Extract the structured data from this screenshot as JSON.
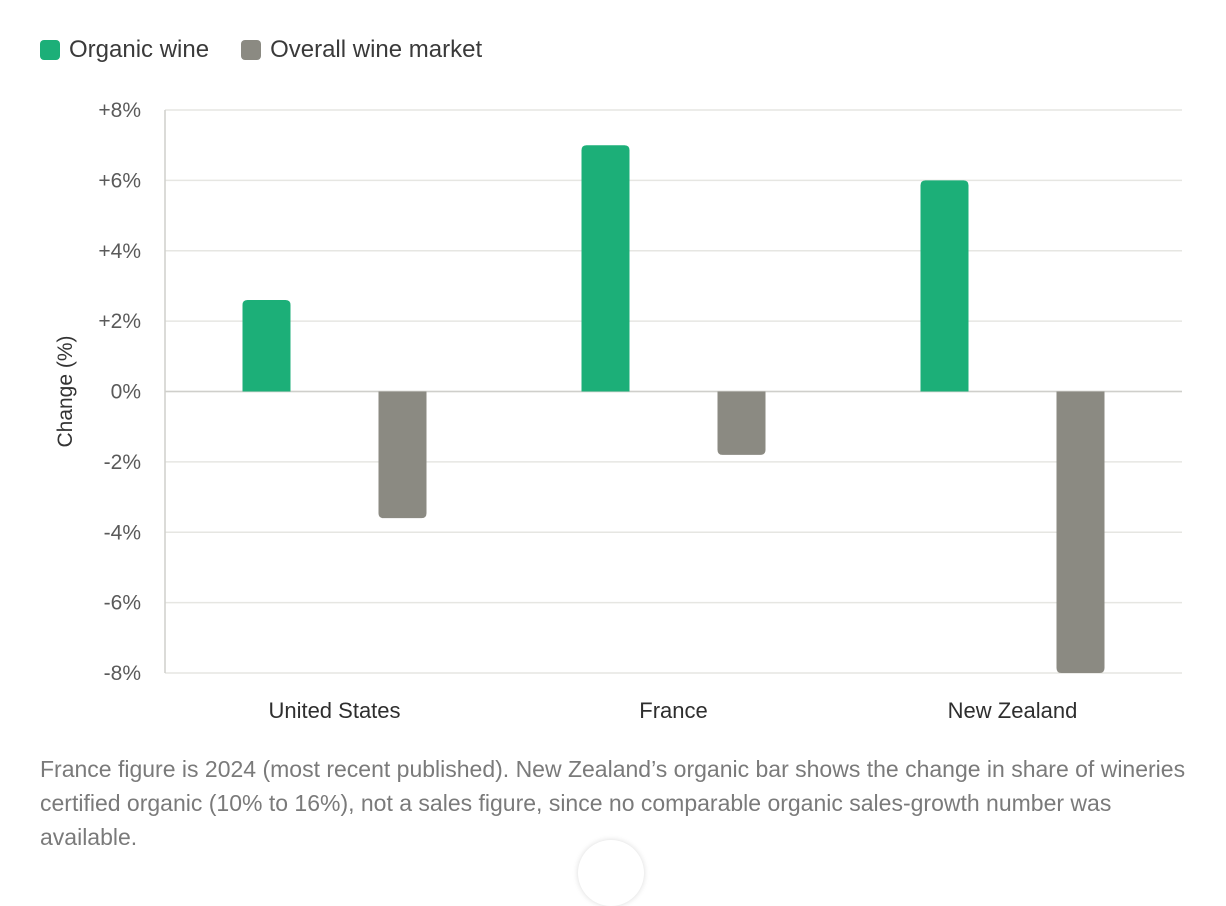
{
  "colors": {
    "organic": "#1caf78",
    "overall": "#8b8a82",
    "grid": "#e6e6e2",
    "axis": "#cfcfcb"
  },
  "chart_data": {
    "type": "bar",
    "categories": [
      "United States",
      "France",
      "New Zealand"
    ],
    "series": [
      {
        "name": "Organic wine",
        "values": [
          2.6,
          7.0,
          6.0
        ]
      },
      {
        "name": "Overall wine market",
        "values": [
          -3.6,
          -1.8,
          -8.0
        ]
      }
    ],
    "ylabel": "Change (%)",
    "ylim": [
      -8,
      8
    ],
    "yticks": [
      8,
      6,
      4,
      2,
      0,
      -2,
      -4,
      -6,
      -8
    ],
    "ytick_labels": [
      "+8%",
      "+6%",
      "+4%",
      "+2%",
      "0%",
      "-2%",
      "-4%",
      "-6%",
      "-8%"
    ],
    "grid": true,
    "legend": "top-left"
  },
  "caption": "France figure is 2024 (most recent published). New Zealand’s organic bar shows the change in share of wineries certified organic (10% to 16%), not a sales figure, since no comparable organic sales-growth number was available."
}
